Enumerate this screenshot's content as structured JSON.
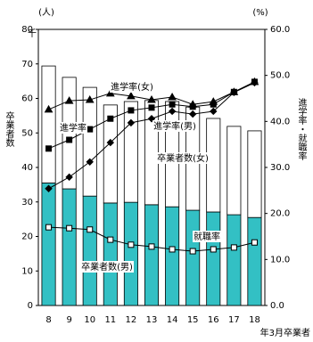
{
  "chart_data": {
    "type": "bar-line",
    "y_unit": "(人)",
    "y_unit_scale": "千",
    "y2_unit": "(%)",
    "y_label": "卒業者数",
    "y2_label": "進学率・就職率",
    "x_label": "年3月卒業者",
    "categories": [
      "8",
      "9",
      "10",
      "11",
      "12",
      "13",
      "14",
      "15",
      "16",
      "17",
      "18"
    ],
    "ylim": [
      0,
      80
    ],
    "yticks": [
      0,
      10,
      20,
      30,
      40,
      50,
      60,
      70,
      80
    ],
    "y2lim": [
      0,
      60
    ],
    "y2ticks": [
      {
        "value": 0,
        "label": "0.0"
      },
      {
        "value": 10,
        "label": "10.0"
      },
      {
        "value": 20,
        "label": "20.0"
      },
      {
        "value": 30,
        "label": "30.0"
      },
      {
        "value": 40,
        "label": "40.0"
      },
      {
        "value": 50,
        "label": "50.0"
      },
      {
        "value": 60,
        "label": "60.0"
      }
    ],
    "series": [
      {
        "name": "卒業者数(男)",
        "kind": "bar",
        "axis": "y",
        "color": "#33c0c4",
        "values": [
          35.5,
          33.8,
          31.7,
          29.7,
          29.9,
          29.2,
          28.6,
          27.6,
          27.1,
          26.3,
          25.5
        ]
      },
      {
        "name": "卒業者数(女)",
        "kind": "bar",
        "axis": "y",
        "color": "#ffffff",
        "values": [
          33.9,
          32.3,
          31.5,
          28.4,
          29.2,
          30.2,
          30.5,
          29.9,
          27.1,
          25.6,
          25.1
        ]
      },
      {
        "name": "進学率(女)",
        "kind": "line",
        "axis": "y2",
        "marker": "triangle",
        "color": "#000000",
        "values": [
          42.6,
          44.5,
          44.7,
          46.1,
          45.5,
          44.7,
          45.3,
          43.7,
          44.3,
          46.4,
          48.6
        ]
      },
      {
        "name": "進学率(男)",
        "kind": "line",
        "axis": "y2",
        "marker": "square",
        "color": "#000000",
        "values": [
          34.1,
          36.0,
          38.3,
          40.6,
          42.4,
          43.0,
          43.7,
          43.2,
          43.7,
          46.4,
          48.6
        ]
      },
      {
        "name": "進学率",
        "kind": "line",
        "axis": "y2",
        "marker": "diamond",
        "color": "#000000",
        "values": [
          25.4,
          27.9,
          31.2,
          35.4,
          39.7,
          40.6,
          42.2,
          41.6,
          42.2,
          46.3,
          48.4
        ]
      },
      {
        "name": "就職率",
        "kind": "line",
        "axis": "y2",
        "marker": "open-square",
        "color": "#000000",
        "values": [
          17.0,
          16.8,
          16.5,
          14.3,
          13.2,
          12.8,
          12.2,
          11.8,
          12.2,
          12.6,
          13.7
        ]
      }
    ]
  }
}
